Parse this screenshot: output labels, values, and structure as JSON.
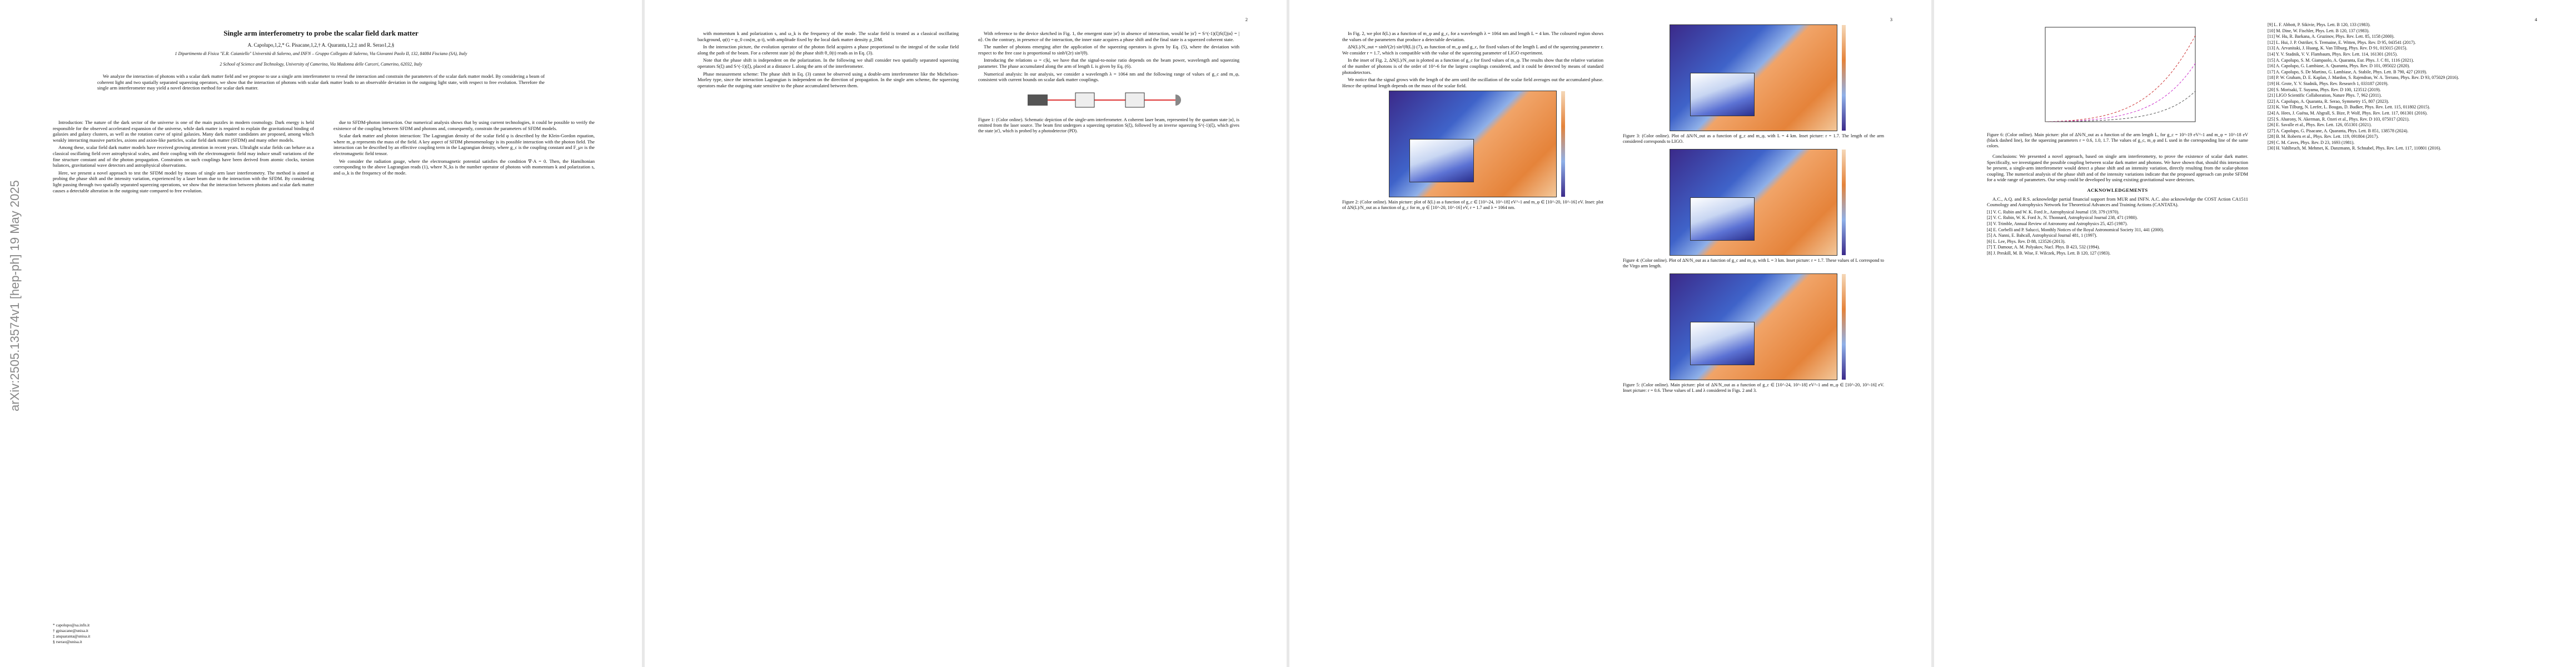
{
  "arxiv_stamp": "arXiv:2505.13574v1  [hep-ph]  19 May 2025",
  "page_numbers": [
    "2",
    "3",
    "4"
  ],
  "title": "Single arm interferometry to probe the scalar field dark matter",
  "authors": "A. Capolupo,1,2,* G. Pisacane,1,2,† A. Quaranta,1,2,‡ and R. Serao1,2,§",
  "affiliations": [
    "1 Dipartimento di Fisica \"E.R. Caianiello\" Università di Salerno, and INFN – Gruppo Collegato di Salerno, Via Giovanni Paolo II, 132, 84084 Fisciano (SA), Italy",
    "2 School of Science and Technology, University of Camerino, Via Madonna delle Carceri, Camerino, 62032, Italy"
  ],
  "abstract": "We analyze the interaction of photons with a scalar dark matter field and we propose to use a single arm interferometer to reveal the interaction and constrain the parameters of the scalar dark matter model. By considering a beam of coherent light and two spatially separated squeezing operators, we show that the interaction of photons with scalar dark matter leads to an observable deviation in the outgoing light state, with respect to free evolution. Therefore the single arm interferometer may yield a novel detection method for scalar dark matter.",
  "footnotes": [
    "* capolupo@sa.infn.it",
    "† gpisacane@unisa.it",
    "‡ anquaranta@unisa.it",
    "§ rserao@unisa.it"
  ],
  "page1_left": [
    "Introduction: The nature of the dark sector of the universe is one of the main puzzles in modern cosmology. Dark energy is held responsible for the observed accelerated expansion of the universe, while dark matter is required to explain the gravitational binding of galaxies and galaxy clusters, as well as the rotation curve of spiral galaxies. Many dark matter candidates are proposed, among which weakly interacting massive particles, axions and axion-like particles, scalar field dark matter (SFDM) and many other models.",
    "Among these, scalar field dark matter models have received growing attention in recent years. Ultralight scalar fields can behave as a classical oscillating field over astrophysical scales, and their coupling with the electromagnetic field may induce small variations of the fine structure constant and of the photon propagation. Constraints on such couplings have been derived from atomic clocks, torsion balances, gravitational wave detectors and astrophysical observations.",
    "Here, we present a novel approach to test the SFDM model by means of single arm laser interferometry. The method is aimed at probing the phase shift and the intensity variation, experienced by a laser beam due to the interaction with the SFDM. By considering light passing through two spatially separated squeezing operations, we show that the interaction between photons and scalar dark matter causes a detectable alteration in the outgoing state compared to free evolution."
  ],
  "page1_right": [
    "due to SFDM-photon interaction. Our numerical analysis shows that by using current technologies, it could be possible to verify the existence of the coupling between SFDM and photons and, consequently, constrain the parameters of SFDM models.",
    "Scalar dark matter and photon interaction: The Lagrangian density of the scalar field φ is described by the Klein-Gordon equation, where m_φ represents the mass of the field. A key aspect of SFDM phenomenology is its possible interaction with the photon field. The interaction can be described by an effective coupling term in the Lagrangian density, where g_c is the coupling constant and F_μν is the electromagnetic field tensor.",
    "We consider the radiation gauge, where the electromagnetic potential satisfies the condition ∇·A = 0. Then, the Hamiltonian corresponding to the above Lagrangian reads (1), where N_ks is the number operator of photons with momentum k and polarization s, and ω_k is the frequency of the mode."
  ],
  "page2_left": [
    "with momentum k and polarization s, and ω_k is the frequency of the mode. The scalar field is treated as a classical oscillating background, φ(t) = φ_0 cos(m_φ t), with amplitude fixed by the local dark matter density ρ_DM.",
    "In the interaction picture, the evolution operator of the photon field acquires a phase proportional to the integral of the scalar field along the path of the beam. For a coherent state |α⟩ the phase shift θ_0(t) reads as in Eq. (3).",
    "Note that the phase shift is independent on the polarization. In the following we shall consider two spatially separated squeezing operators S(ξ) and S^(-1)(ξ), placed at a distance L along the arm of the interferometer.",
    "Phase measurement scheme: The phase shift in Eq. (3) cannot be observed using a double-arm interferometer like the Michelson-Morley type, since the interaction Lagrangian is independent on the direction of propagation. In the single arm scheme, the squeezing operators make the outgoing state sensitive to the phase accumulated between them."
  ],
  "page2_right": [
    "With reference to the device sketched in Fig. 1, the emergent state |α'⟩ in absence of interaction, would be |α'⟩ = S^(-1)(ξ)S(ξ)|α⟩ = |α⟩. On the contrary, in presence of the interaction, the inner state acquires a phase shift and the final state is a squeezed coherent state.",
    "The number of photons emerging after the application of the squeezing operators is given by Eq. (5), where the deviation with respect to the free case is proportional to sinh²(2r) sin²(θ).",
    "Introducing the relations ω = c|k|, we have that the signal-to-noise ratio depends on the beam power, wavelength and squeezing parameter. The phase accumulated along the arm of length L is given by Eq. (6).",
    "Numerical analysis: In our analysis, we consider a wavelength λ = 1064 nm and the following range of values of g_c and m_φ, consistent with current bounds on scalar dark matter couplings."
  ],
  "page3_left": [
    "In Fig. 2, we plot δ(L) as a function of m_φ and g_c, for a wavelength λ = 1064 nm and length L = 4 km. The coloured region shows the values of the parameters that produce a detectable deviation.",
    "ΔN(L)/N_out = sinh²(2r) sin²(θ(L)) (7), as function of m_φ and g_c, for fixed values of the length L and of the squeezing parameter r. We consider r = 1.7, which is compatible with the value of the squeezing parameter of LIGO experiment.",
    "In the inset of Fig. 2, ΔN(L)/N_out is plotted as a function of g_c for fixed values of m_φ. The results show that the relative variation of the number of photons is of the order of 10^-6 for the largest couplings considered, and it could be detected by means of standard photodetectors.",
    "We notice that the signal grows with the length of the arm until the oscillation of the scalar field averages out the accumulated phase. Hence the optimal length depends on the mass of the scalar field."
  ],
  "page4_left": [
    "Conclusions: We presented a novel approach, based on single arm interferometry, to prove the existence of scalar dark matter. Specifically, we investigated the possible coupling between scalar dark matter and photons. We have shown that, should this interaction be present, a single-arm interferometer would detect a phase shift and an intensity variation, directly resulting from the scalar-photon coupling. The numerical analysis of the phase shift and of the intensity variations indicate that the proposed approach can probe SFDM for a wide range of parameters. Our setup could be developed by using existing gravitational wave detectors."
  ],
  "acknowledgements_heading": "ACKNOWLEDGEMENTS",
  "acknowledgements": "A.C., A.Q. and R.S. acknowledge partial financial support from MUR and INFN. A.C. also acknowledge the COST Action CA1511 Cosmology and Astrophysics Network for Theoretical Advances and Training Actions (CANTATA).",
  "figures": [
    {
      "caption": "Figure 1: (Color online). Schematic depiction of the single-arm interferometer. A coherent laser beam, represented by the quantum state |α⟩, is emitted from the laser source. The beam first undergoes a squeezing operation S(ξ), followed by an inverse squeezing S^(-1)(ξ), which gives the state |α'⟩, which is probed by a photodetector (PD)."
    },
    {
      "caption": "Figure 2: (Color online). Main picture: plot of δ(L) as a function of g_c ∈ [10^-24, 10^-18] eV^-1 and m_φ ∈ [10^-20, 10^-16] eV. Inset: plot of ΔN(L)/N_out as a function of g_c for m_φ ∈ [10^-20, 10^-16] eV, r = 1.7 and λ = 1064 nm."
    },
    {
      "caption": "Figure 3: (Color online). Plot of ΔN/N_out as a function of g_c and m_φ, with L = 4 km. Inset picture: r = 1.7. The length of the arm considered corresponds to LIGO."
    },
    {
      "caption": "Figure 4: (Color online). Plot of ΔN/N_out as a function of g_c and m_φ, with L = 3 km. Inset picture: r = 1.7. These values of L correspond to the Virgo arm length."
    },
    {
      "caption": "Figure 5: (Color online). Main picture: plot of ΔN/N_out as a function of g_c ∈ [10^-24, 10^-18] eV^-1 and m_φ ∈ [10^-20, 10^-16] eV. Inset picture: r = 0.6. These values of L and λ considered in Figs. 2 and 3."
    },
    {
      "caption": "Figure 6: (Color online). Main picture: plot of ΔN/N_out as a function of the arm length L, for g_c = 10^-19 eV^-1 and m_φ = 10^-18 eV (black dashed line), for the squeezing parameters r = 0.6, 1.0, 1.7. The values of g_c, m_φ and L used in the corresponding line of the same colors."
    }
  ],
  "references": [
    "[1] V. C. Rubin and W. K. Ford Jr., Astrophysical Journal 159, 379 (1970).",
    "[2] V. C. Rubin, W. K. Ford Jr., N. Thonnard, Astrophysical Journal 238, 471 (1980).",
    "[3] V. Trimble, Annual Review of Astronomy and Astrophysics 25, 425 (1987).",
    "[4] E. Corbelli and P. Salucci, Monthly Notices of the Royal Astronomical Society 311, 441 (2000).",
    "[5] A. Nanni, E. Bahcall, Astrophysical Journal 481, 1 (1997).",
    "[6] L. Lee, Phys. Rev. D 88, 123526 (2013).",
    "[7] T. Damour, A. M. Polyakov, Nucl. Phys. B 423, 532 (1994).",
    "[8] J. Preskill, M. B. Wise, F. Wilczek, Phys. Lett. B 120, 127 (1983).",
    "[9] L. F. Abbott, P. Sikivie, Phys. Lett. B 120, 133 (1983).",
    "[10] M. Dine, W. Fischler, Phys. Lett. B 120, 137 (1983).",
    "[11] W. Hu, R. Barkana, A. Gruzinov, Phys. Rev. Lett. 85, 1158 (2000).",
    "[12] L. Hui, J. P. Ostriker, S. Tremaine, E. Witten, Phys. Rev. D 95, 043541 (2017).",
    "[13] A. Arvanitaki, J. Huang, K. Van Tilburg, Phys. Rev. D 91, 015015 (2015).",
    "[14] Y. V. Stadnik, V. V. Flambaum, Phys. Rev. Lett. 114, 161301 (2015).",
    "[15] A. Capolupo, S. M. Giampaolo, A. Quaranta, Eur. Phys. J. C 81, 1116 (2021).",
    "[16] A. Capolupo, G. Lambiase, A. Quaranta, Phys. Rev. D 101, 095022 (2020).",
    "[17] A. Capolupo, S. De Martino, G. Lambiase, A. Stabile, Phys. Lett. B 790, 427 (2019).",
    "[18] P. W. Graham, D. E. Kaplan, J. Mardon, S. Rajendran, W. A. Terrano, Phys. Rev. D 93, 075029 (2016).",
    "[19] H. Grote, Y. V. Stadnik, Phys. Rev. Research 1, 033187 (2019).",
    "[20] S. Morisaki, T. Suyama, Phys. Rev. D 100, 123512 (2019).",
    "[21] LIGO Scientific Collaboration, Nature Phys. 7, 962 (2011).",
    "[22] A. Capolupo, A. Quaranta, R. Serao, Symmetry 15, 807 (2023).",
    "[23] K. Van Tilburg, N. Leefer, L. Bougas, D. Budker, Phys. Rev. Lett. 115, 011802 (2015).",
    "[24] A. Hees, J. Guéna, M. Abgrall, S. Bize, P. Wolf, Phys. Rev. Lett. 117, 061301 (2016).",
    "[25] S. Aharony, N. Akerman, R. Ozeri et al., Phys. Rev. D 103, 075017 (2021).",
    "[26] E. Savalle et al., Phys. Rev. Lett. 126, 051301 (2021).",
    "[27] A. Capolupo, G. Pisacane, A. Quaranta, Phys. Lett. B 851, 138578 (2024).",
    "[28] B. M. Roberts et al., Phys. Rev. Lett. 119, 091804 (2017).",
    "[29] C. M. Caves, Phys. Rev. D 23, 1693 (1981).",
    "[30] H. Vahlbruch, M. Mehmet, K. Danzmann, R. Schnabel, Phys. Rev. Lett. 117, 110801 (2016)."
  ]
}
